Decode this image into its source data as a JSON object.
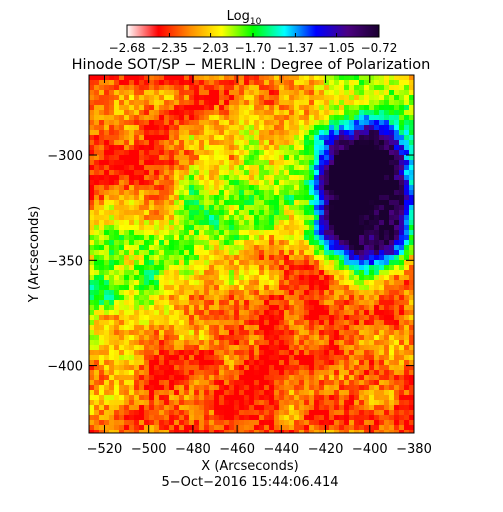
{
  "chart_data": {
    "type": "heatmap",
    "title": "Hinode SOT/SP − MERLIN : Degree of Polarization",
    "footer_date": "5−Oct−2016 15:44:06.414",
    "xlabel": "X (Arcseconds)",
    "ylabel": "Y (Arcseconds)",
    "xlim": [
      -527,
      -380
    ],
    "ylim": [
      -432,
      -262
    ],
    "x_ticks": [
      -520,
      -500,
      -480,
      -460,
      -440,
      -420,
      -400,
      -380
    ],
    "x_tick_labels": [
      "−520",
      "−500",
      "−480",
      "−460",
      "−440",
      "−420",
      "−400",
      "−380"
    ],
    "y_ticks": [
      -300,
      -350,
      -400
    ],
    "y_tick_labels": [
      "−300",
      "−350",
      "−400"
    ],
    "colorbar": {
      "label_main": "Log",
      "label_sub": "10",
      "range": [
        -2.68,
        -0.72
      ],
      "tick_values": [
        -2.68,
        -2.35,
        -2.03,
        -1.7,
        -1.37,
        -1.05,
        -0.72
      ],
      "tick_labels": [
        "−2.68",
        "−2.35",
        "−2.03",
        "−1.70",
        "−1.37",
        "−1.05",
        "−0.72"
      ],
      "colormap": [
        "#ffffff",
        "#ff0000",
        "#ff8c00",
        "#ffff00",
        "#00ff00",
        "#00ffff",
        "#0000ff",
        "#4b0082",
        "#1a0030"
      ]
    },
    "features": {
      "sunspot_center": [
        -402,
        -322
      ],
      "sunspot_umbra_log_value": -0.8,
      "background_log_value": -2.5
    }
  }
}
